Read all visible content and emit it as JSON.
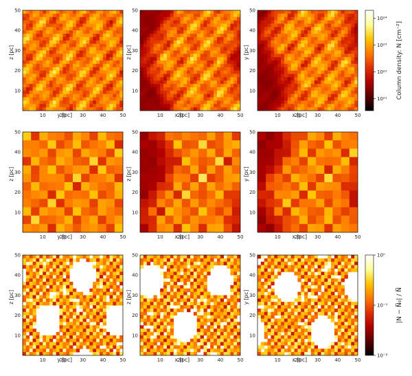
{
  "figure": {
    "panels": [
      {
        "id": "r1c1",
        "row": 1,
        "col": 1,
        "xlabel": "y [pc]",
        "ylabel": "z [pc]",
        "kind": "column-density",
        "style": "smooth"
      },
      {
        "id": "r1c2",
        "row": 1,
        "col": 2,
        "xlabel": "x [pc]",
        "ylabel": "z [pc]",
        "kind": "column-density",
        "style": "smooth-band"
      },
      {
        "id": "r1c3",
        "row": 1,
        "col": 3,
        "xlabel": "x [pc]",
        "ylabel": "y [pc]",
        "kind": "column-density",
        "style": "smooth-band"
      },
      {
        "id": "r2c1",
        "row": 2,
        "col": 1,
        "xlabel": "y [pc]",
        "ylabel": "z [pc]",
        "kind": "column-density",
        "style": "blocky"
      },
      {
        "id": "r2c2",
        "row": 2,
        "col": 2,
        "xlabel": "x [pc]",
        "ylabel": "z [pc]",
        "kind": "column-density",
        "style": "blocky-band"
      },
      {
        "id": "r2c3",
        "row": 2,
        "col": 3,
        "xlabel": "x [pc]",
        "ylabel": "y [pc]",
        "kind": "column-density",
        "style": "blocky-band"
      },
      {
        "id": "r3c1",
        "row": 3,
        "col": 1,
        "xlabel": "y [pc]",
        "ylabel": "z [pc]",
        "kind": "relative-difference",
        "style": "residual"
      },
      {
        "id": "r3c2",
        "row": 3,
        "col": 2,
        "xlabel": "x [pc]",
        "ylabel": "z [pc]",
        "kind": "relative-difference",
        "style": "residual"
      },
      {
        "id": "r3c3",
        "row": 3,
        "col": 3,
        "xlabel": "x [pc]",
        "ylabel": "y [pc]",
        "kind": "relative-difference",
        "style": "residual"
      }
    ],
    "axis_ticks": [
      "10",
      "20",
      "30",
      "40",
      "50"
    ],
    "axis_range_pc": [
      0,
      50
    ],
    "colorbar_top": {
      "label": "Column density: N [cm⁻²]",
      "scale": "log",
      "ticks": [
        "10²¹",
        "10²²",
        "10²³",
        "10²⁴"
      ],
      "tick_exponents": [
        21,
        22,
        23,
        24
      ],
      "range_exponents": [
        20.55,
        24.3
      ]
    },
    "colorbar_bottom": {
      "label": "|N − N̅₀| / N̅",
      "scale": "log",
      "ticks": [
        "10⁻²",
        "10⁻¹",
        "10⁰"
      ],
      "tick_exponents": [
        -2,
        -1,
        0
      ],
      "range_exponents": [
        -2,
        0
      ]
    },
    "colormap": [
      "#000000",
      "#5a0000",
      "#b00000",
      "#e03000",
      "#ff7a00",
      "#ffc400",
      "#ffff9a",
      "#ffffff"
    ]
  }
}
